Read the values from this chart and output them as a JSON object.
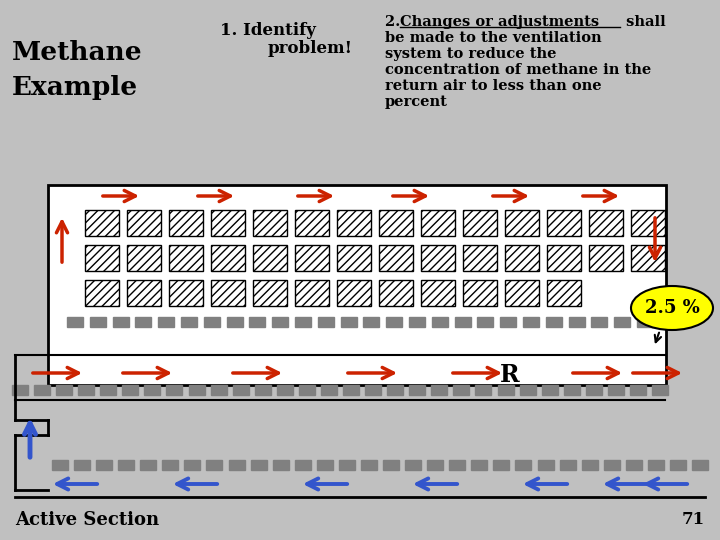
{
  "title_left_line1": "Methane",
  "title_left_line2": "Example",
  "title_center_line1": "1. Identify",
  "title_center_line2": "problem!",
  "right_text_line1_prefix": "2. ",
  "right_text_line1_underlined": "Changes or adjustments",
  "right_text_line1_suffix": " shall",
  "right_text_lines": [
    "be made to the ventilation",
    "system to reduce the",
    "concentration of methane in the",
    "return air to less than one",
    "percent"
  ],
  "active_section": "Active Section",
  "page_num": "71",
  "percent_label": "2.5 %",
  "R_label": "R",
  "bg_color": "#c0c0c0",
  "room_bg": "#ffffff",
  "arrow_red": "#cc2200",
  "arrow_blue": "#3355cc",
  "dot_color": "#808080",
  "yellow_ellipse": "#ffff00"
}
